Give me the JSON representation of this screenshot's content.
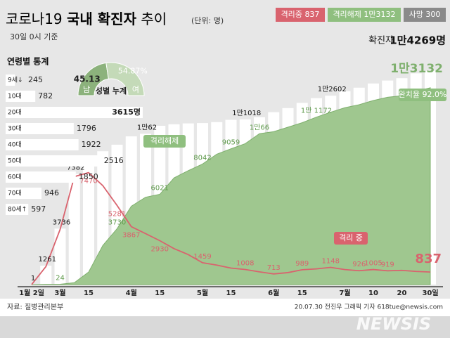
{
  "chart_data": [
    {
      "type": "timeline",
      "title": [
        "코로나19",
        "국내 확진자",
        "추이"
      ],
      "unit": "(단위: 명)",
      "subtitle": "30일 0시 기준",
      "categories": [
        "1월 2일",
        null,
        "3월",
        null,
        "15",
        null,
        null,
        "4월",
        null,
        "15",
        null,
        null,
        "5월",
        null,
        "15",
        null,
        null,
        "6월",
        null,
        "15",
        null,
        null,
        "7월",
        null,
        "10",
        null,
        "20",
        null,
        "30일"
      ],
      "ylim": [
        0,
        15000
      ],
      "series": [
        {
          "name": "확진자",
          "color": "#ffffff",
          "values": [
            1,
            1261,
            3736,
            7382,
            8162,
            8897,
            9332,
            9887,
            10062,
            10591,
            10694,
            10752,
            10774,
            10840,
            10991,
            11018,
            11165,
            11503,
            11776,
            12121,
            12438,
            12602,
            12904,
            13137,
            13417,
            13612,
            13771,
            14092,
            14269
          ],
          "value_labels": [
            "1",
            "1261",
            "3736",
            "7382",
            null,
            null,
            null,
            null,
            "1만62",
            null,
            null,
            null,
            null,
            null,
            null,
            "1만1018",
            null,
            null,
            null,
            null,
            null,
            "1만2602",
            null,
            null,
            null,
            null,
            null,
            null,
            "1만4269명"
          ]
        },
        {
          "name": "격리해제",
          "color": "#9fc78f",
          "values": [
            0,
            16,
            24,
            130,
            834,
            2612,
            3730,
            5228,
            5828,
            6021,
            7117,
            7600,
            8042,
            8700,
            9059,
            9400,
            10066,
            10200,
            10500,
            10800,
            11172,
            11500,
            11800,
            12000,
            12282,
            12500,
            12600,
            12900,
            13132
          ],
          "value_labels": [
            null,
            null,
            "24",
            null,
            null,
            null,
            "3730",
            null,
            null,
            "6021",
            null,
            null,
            "8042",
            null,
            "9059",
            null,
            "1만66",
            null,
            null,
            null,
            "1만\n1172",
            null,
            null,
            null,
            null,
            null,
            null,
            null,
            "1만3132"
          ]
        },
        {
          "name": "격리중",
          "color": "#d9636e",
          "values": [
            1,
            1200,
            3680,
            7200,
            7470,
            6600,
            5281,
            3867,
            3400,
            2930,
            2400,
            2000,
            1459,
            1300,
            1100,
            1008,
            850,
            713,
            800,
            989,
            1050,
            1148,
            1000,
            926,
            1005,
            919,
            950,
            880,
            837
          ],
          "value_labels": [
            null,
            null,
            null,
            null,
            "7470",
            null,
            "5281",
            "3867",
            null,
            "2930",
            null,
            null,
            "1459",
            null,
            null,
            "1008",
            null,
            "713",
            null,
            "989",
            null,
            "1148",
            null,
            "926",
            "1005",
            "919",
            null,
            null,
            "837"
          ]
        }
      ],
      "deaths": {
        "name": "사망",
        "value": 300
      },
      "annotations": [
        "격리 중",
        "완치율 92.0%"
      ],
      "source": "자료: 질병관리본부",
      "credit": "20.07.30 전진우 그래픽 기자 618tue@newsis.com",
      "watermark": "NEWSIS"
    },
    {
      "type": "hbar",
      "title": "연령별 통계",
      "categories": [
        "9세↓",
        "10대",
        "20대",
        "30대",
        "40대",
        "50대",
        "60대",
        "70대",
        "80세↑"
      ],
      "values": [
        245,
        782,
        3615,
        1796,
        1922,
        2516,
        1850,
        946,
        597
      ],
      "value_labels": [
        "245",
        "782",
        "3615명",
        "1796",
        "1922",
        "2516",
        "1850",
        "946",
        "597"
      ],
      "color": "#ffffff"
    },
    {
      "type": "halfpie",
      "title": "성별 누계",
      "categories": [
        "남",
        "여"
      ],
      "values": [
        45.13,
        54.87
      ],
      "value_labels": [
        "45.13",
        "54.87%"
      ],
      "colors": [
        "#8cb27c",
        "#c4dab8"
      ]
    }
  ]
}
